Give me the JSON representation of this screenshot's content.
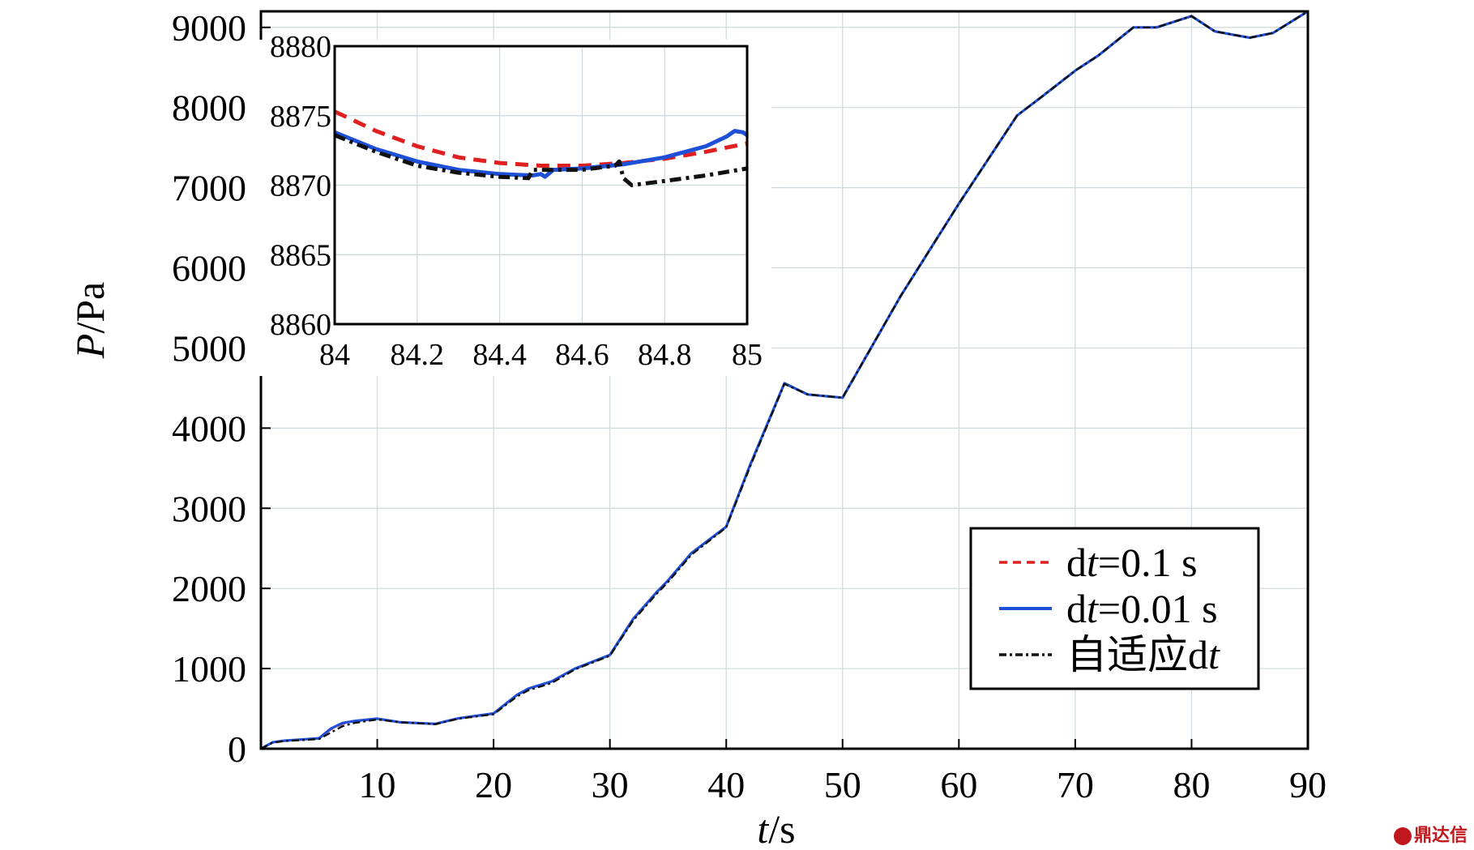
{
  "chart_data": [
    {
      "type": "line",
      "title": "",
      "xlabel_italic": "t",
      "xlabel_rest": "/s",
      "ylabel_italic": "P",
      "ylabel_rest": "/Pa",
      "xlim": [
        0,
        90
      ],
      "ylim": [
        0,
        9200
      ],
      "x_ticks": [
        10,
        20,
        30,
        40,
        50,
        60,
        70,
        80,
        90
      ],
      "y_ticks": [
        0,
        1000,
        2000,
        3000,
        4000,
        5000,
        6000,
        7000,
        8000,
        9000
      ],
      "grid": true,
      "legend_position": "bottom-right",
      "series": [
        {
          "name": "dt=0.1 s",
          "legend_prefix": "d",
          "legend_italic": "t",
          "legend_suffix": "=0.1 s",
          "color": "#e02020",
          "style": "dashed",
          "x": [
            0,
            1,
            2,
            5,
            6,
            7,
            8,
            10,
            12,
            15,
            17,
            20,
            22,
            23,
            25,
            27,
            30,
            32,
            34,
            35,
            37,
            40,
            42,
            45,
            47,
            50,
            55,
            60,
            65,
            67,
            70,
            72,
            75,
            77,
            80,
            82,
            85,
            87,
            90
          ],
          "y": [
            0,
            80,
            100,
            130,
            240,
            310,
            340,
            370,
            330,
            310,
            380,
            440,
            670,
            750,
            840,
            1000,
            1170,
            1620,
            1950,
            2100,
            2440,
            2770,
            3520,
            4560,
            4420,
            4380,
            5650,
            6800,
            7900,
            8120,
            8460,
            8650,
            9000,
            9000,
            9140,
            8950,
            8870,
            8930,
            9200
          ]
        },
        {
          "name": "dt=0.01 s",
          "legend_prefix": "d",
          "legend_italic": "t",
          "legend_suffix": "=0.01 s",
          "color": "#1e4fd8",
          "style": "solid",
          "x": [
            0,
            1,
            2,
            5,
            6,
            7,
            8,
            10,
            12,
            15,
            17,
            20,
            22,
            23,
            25,
            27,
            30,
            32,
            34,
            35,
            37,
            40,
            42,
            45,
            47,
            50,
            55,
            60,
            65,
            67,
            70,
            72,
            75,
            77,
            80,
            82,
            85,
            87,
            90
          ],
          "y": [
            0,
            80,
            100,
            130,
            250,
            320,
            345,
            375,
            330,
            310,
            380,
            440,
            670,
            750,
            840,
            1000,
            1170,
            1620,
            1950,
            2100,
            2440,
            2770,
            3520,
            4560,
            4420,
            4380,
            5650,
            6800,
            7900,
            8120,
            8460,
            8650,
            9000,
            9000,
            9140,
            8950,
            8870,
            8930,
            9200
          ]
        },
        {
          "name": "自适应dt",
          "legend_prefix": "自适应d",
          "legend_italic": "t",
          "legend_suffix": "",
          "color": "#111111",
          "style": "dashdot",
          "x": [
            0,
            1,
            2,
            5,
            6,
            7,
            8,
            10,
            12,
            15,
            17,
            20,
            22,
            23,
            25,
            27,
            30,
            32,
            34,
            35,
            37,
            40,
            42,
            45,
            47,
            50,
            55,
            60,
            65,
            67,
            70,
            72,
            75,
            77,
            80,
            82,
            85,
            87,
            90
          ],
          "y": [
            0,
            75,
            95,
            120,
            200,
            280,
            320,
            365,
            330,
            305,
            375,
            430,
            650,
            730,
            820,
            990,
            1160,
            1600,
            1930,
            2080,
            2420,
            2760,
            3500,
            4550,
            4420,
            4380,
            5650,
            6800,
            7900,
            8120,
            8460,
            8650,
            9000,
            9000,
            9140,
            8950,
            8870,
            8930,
            9200
          ]
        }
      ]
    },
    {
      "type": "line",
      "title": "",
      "role": "inset-zoom",
      "xlim": [
        84,
        85
      ],
      "ylim": [
        8860,
        8880
      ],
      "x_ticks": [
        "84",
        "84.2",
        "84.4",
        "84.6",
        "84.8",
        "85"
      ],
      "y_ticks": [
        "8860",
        "8865",
        "8870",
        "8875",
        "8880"
      ],
      "grid": true,
      "series": [
        {
          "name": "dt=0.1 s",
          "color": "#e02020",
          "style": "dashed",
          "x": [
            84,
            84.1,
            84.2,
            84.3,
            84.4,
            84.5,
            84.6,
            84.7,
            84.8,
            84.9,
            85
          ],
          "y": [
            8875.3,
            8873.9,
            8872.8,
            8872.0,
            8871.6,
            8871.4,
            8871.4,
            8871.6,
            8871.9,
            8872.4,
            8873.0
          ]
        },
        {
          "name": "dt=0.01 s",
          "color": "#1e4fd8",
          "style": "solid",
          "x": [
            84,
            84.1,
            84.2,
            84.3,
            84.4,
            84.48,
            84.5,
            84.51,
            84.53,
            84.6,
            84.7,
            84.8,
            84.9,
            84.95,
            84.97,
            84.99,
            85
          ],
          "y": [
            8873.8,
            8872.6,
            8871.7,
            8871.1,
            8870.8,
            8870.7,
            8870.8,
            8870.6,
            8871.1,
            8871.2,
            8871.5,
            8872.0,
            8872.8,
            8873.5,
            8873.9,
            8873.8,
            8873.6
          ]
        },
        {
          "name": "自适应dt",
          "color": "#111111",
          "style": "dashdot",
          "x": [
            84,
            84.1,
            84.2,
            84.3,
            84.4,
            84.47,
            84.48,
            84.5,
            84.6,
            84.68,
            84.69,
            84.7,
            84.72,
            84.8,
            84.9,
            85
          ],
          "y": [
            8873.6,
            8872.4,
            8871.4,
            8870.9,
            8870.6,
            8870.5,
            8871.1,
            8871.1,
            8871.1,
            8871.4,
            8871.7,
            8870.5,
            8870.0,
            8870.3,
            8870.7,
            8871.2
          ]
        }
      ]
    }
  ],
  "watermark": {
    "text": "鼎达信"
  }
}
